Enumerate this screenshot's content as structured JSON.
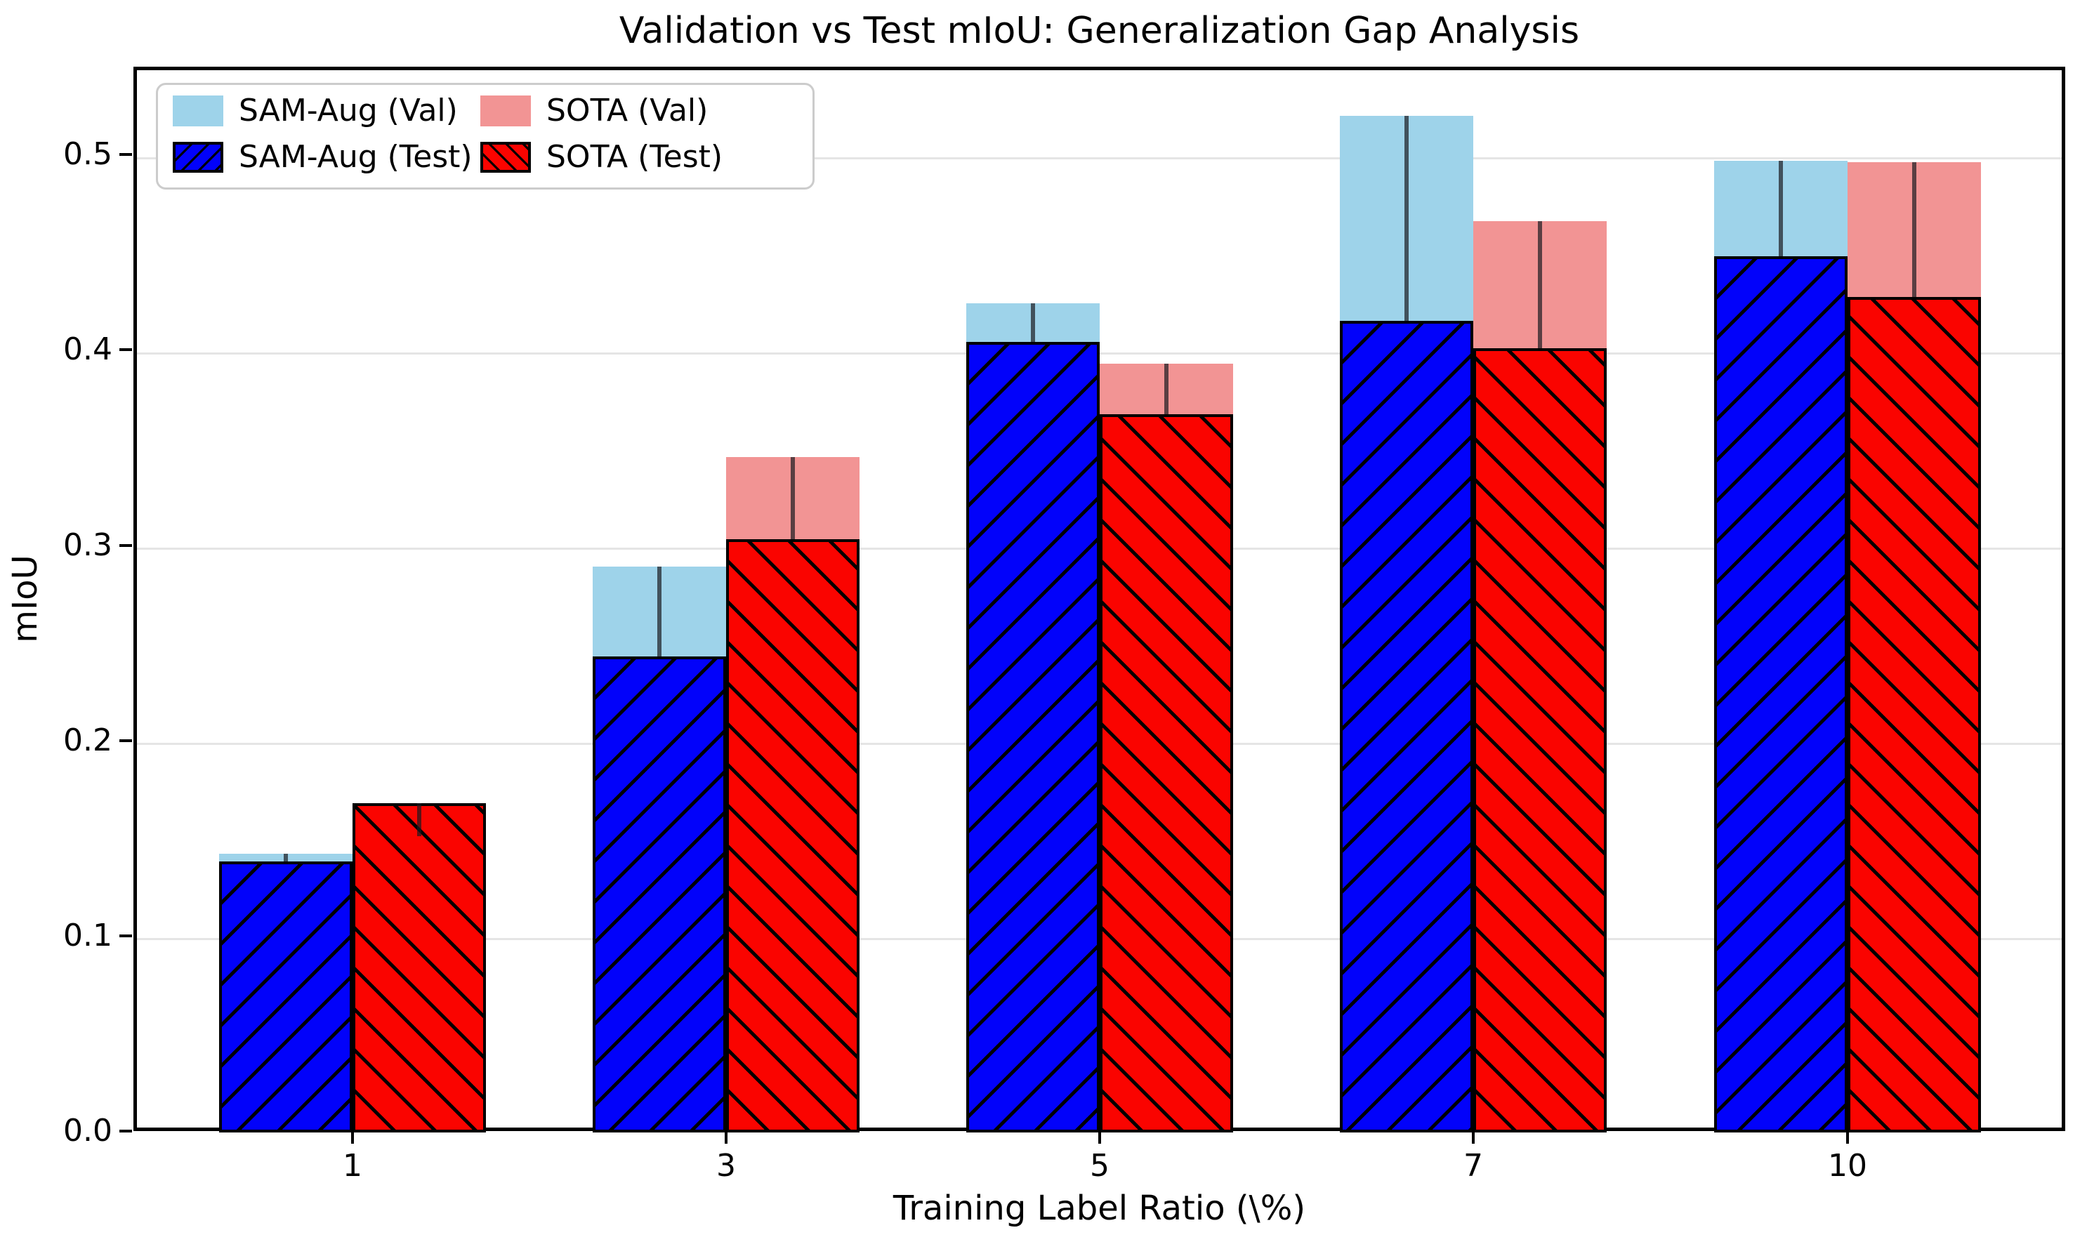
{
  "chart_data": {
    "type": "bar",
    "title": "Validation vs Test mIoU: Generalization Gap Analysis",
    "xlabel": "Training Label Ratio (\\%)",
    "ylabel": "mIoU",
    "categories": [
      "1",
      "3",
      "5",
      "7",
      "10"
    ],
    "series": [
      {
        "name": "SAM-Aug (Val)",
        "role": "val",
        "color": "#9ed3ea",
        "hatch": "none",
        "values": [
          0.142,
          0.289,
          0.424,
          0.52,
          0.497
        ]
      },
      {
        "name": "SAM-Aug (Test)",
        "role": "test",
        "color": "#0202fa",
        "hatch": "/",
        "values": [
          0.138,
          0.243,
          0.404,
          0.415,
          0.448
        ]
      },
      {
        "name": "SOTA (Val)",
        "role": "val",
        "color": "#f29494",
        "hatch": "none",
        "values": [
          0.151,
          0.345,
          0.393,
          0.466,
          0.496
        ]
      },
      {
        "name": "SOTA (Test)",
        "role": "test",
        "color": "#fa0400",
        "hatch": "\\",
        "values": [
          0.168,
          0.303,
          0.367,
          0.401,
          0.427
        ]
      }
    ],
    "gap_lines": "vertical dark line per bar pair connecting Val top to Test top",
    "ylim": [
      0,
      0.545
    ],
    "yticks": [
      "0.0",
      "0.1",
      "0.2",
      "0.3",
      "0.4",
      "0.5"
    ],
    "grid": true,
    "legend_position": "upper left",
    "colors": {
      "grid": "#e5e5e5",
      "spine": "#000000",
      "gap_line": "rgba(25,25,32,0.70)",
      "legend_border": "#cccccc"
    }
  }
}
